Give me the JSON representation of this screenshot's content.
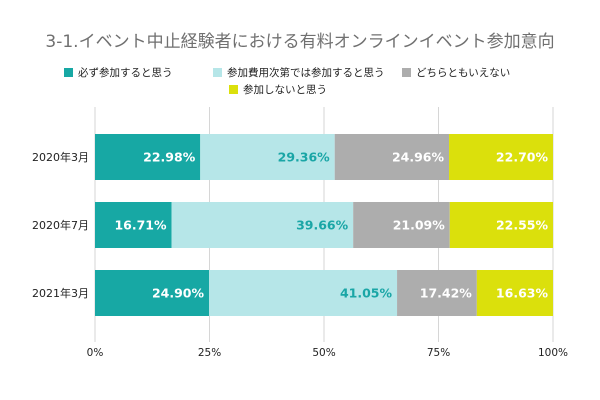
{
  "chart_data": {
    "type": "bar",
    "orientation": "horizontal",
    "stacked": true,
    "title": "3-1.イベント中止経験者における有料オンラインイベント参加意向",
    "categories": [
      "2020年3月",
      "2020年7月",
      "2021年3月"
    ],
    "series": [
      {
        "name": "必ず参加すると思う",
        "color": "#17a8a4",
        "label_color": "#ffffff",
        "values": [
          22.98,
          16.71,
          24.9
        ]
      },
      {
        "name": "参加費用次第では参加すると思う",
        "color": "#b6e6e8",
        "label_color": "#1aa6a6",
        "values": [
          29.36,
          39.66,
          41.05
        ]
      },
      {
        "name": "どちらともいえない",
        "color": "#adadad",
        "label_color": "#ffffff",
        "values": [
          24.96,
          21.09,
          17.42
        ]
      },
      {
        "name": "参加しないと思う",
        "color": "#dbe00c",
        "label_color": "#ffffff",
        "values": [
          22.7,
          22.55,
          16.63
        ]
      }
    ],
    "data_labels": [
      [
        "22.98%",
        "29.36%",
        "24.96%",
        "22.70%"
      ],
      [
        "16.71%",
        "39.66%",
        "21.09%",
        "22.55%"
      ],
      [
        "24.90%",
        "41.05%",
        "17.42%",
        "16.63%"
      ]
    ],
    "xticks": [
      "0%",
      "25%",
      "50%",
      "75%",
      "100%"
    ],
    "xlim": [
      0,
      100
    ],
    "grid": true,
    "legend_position": "top"
  }
}
